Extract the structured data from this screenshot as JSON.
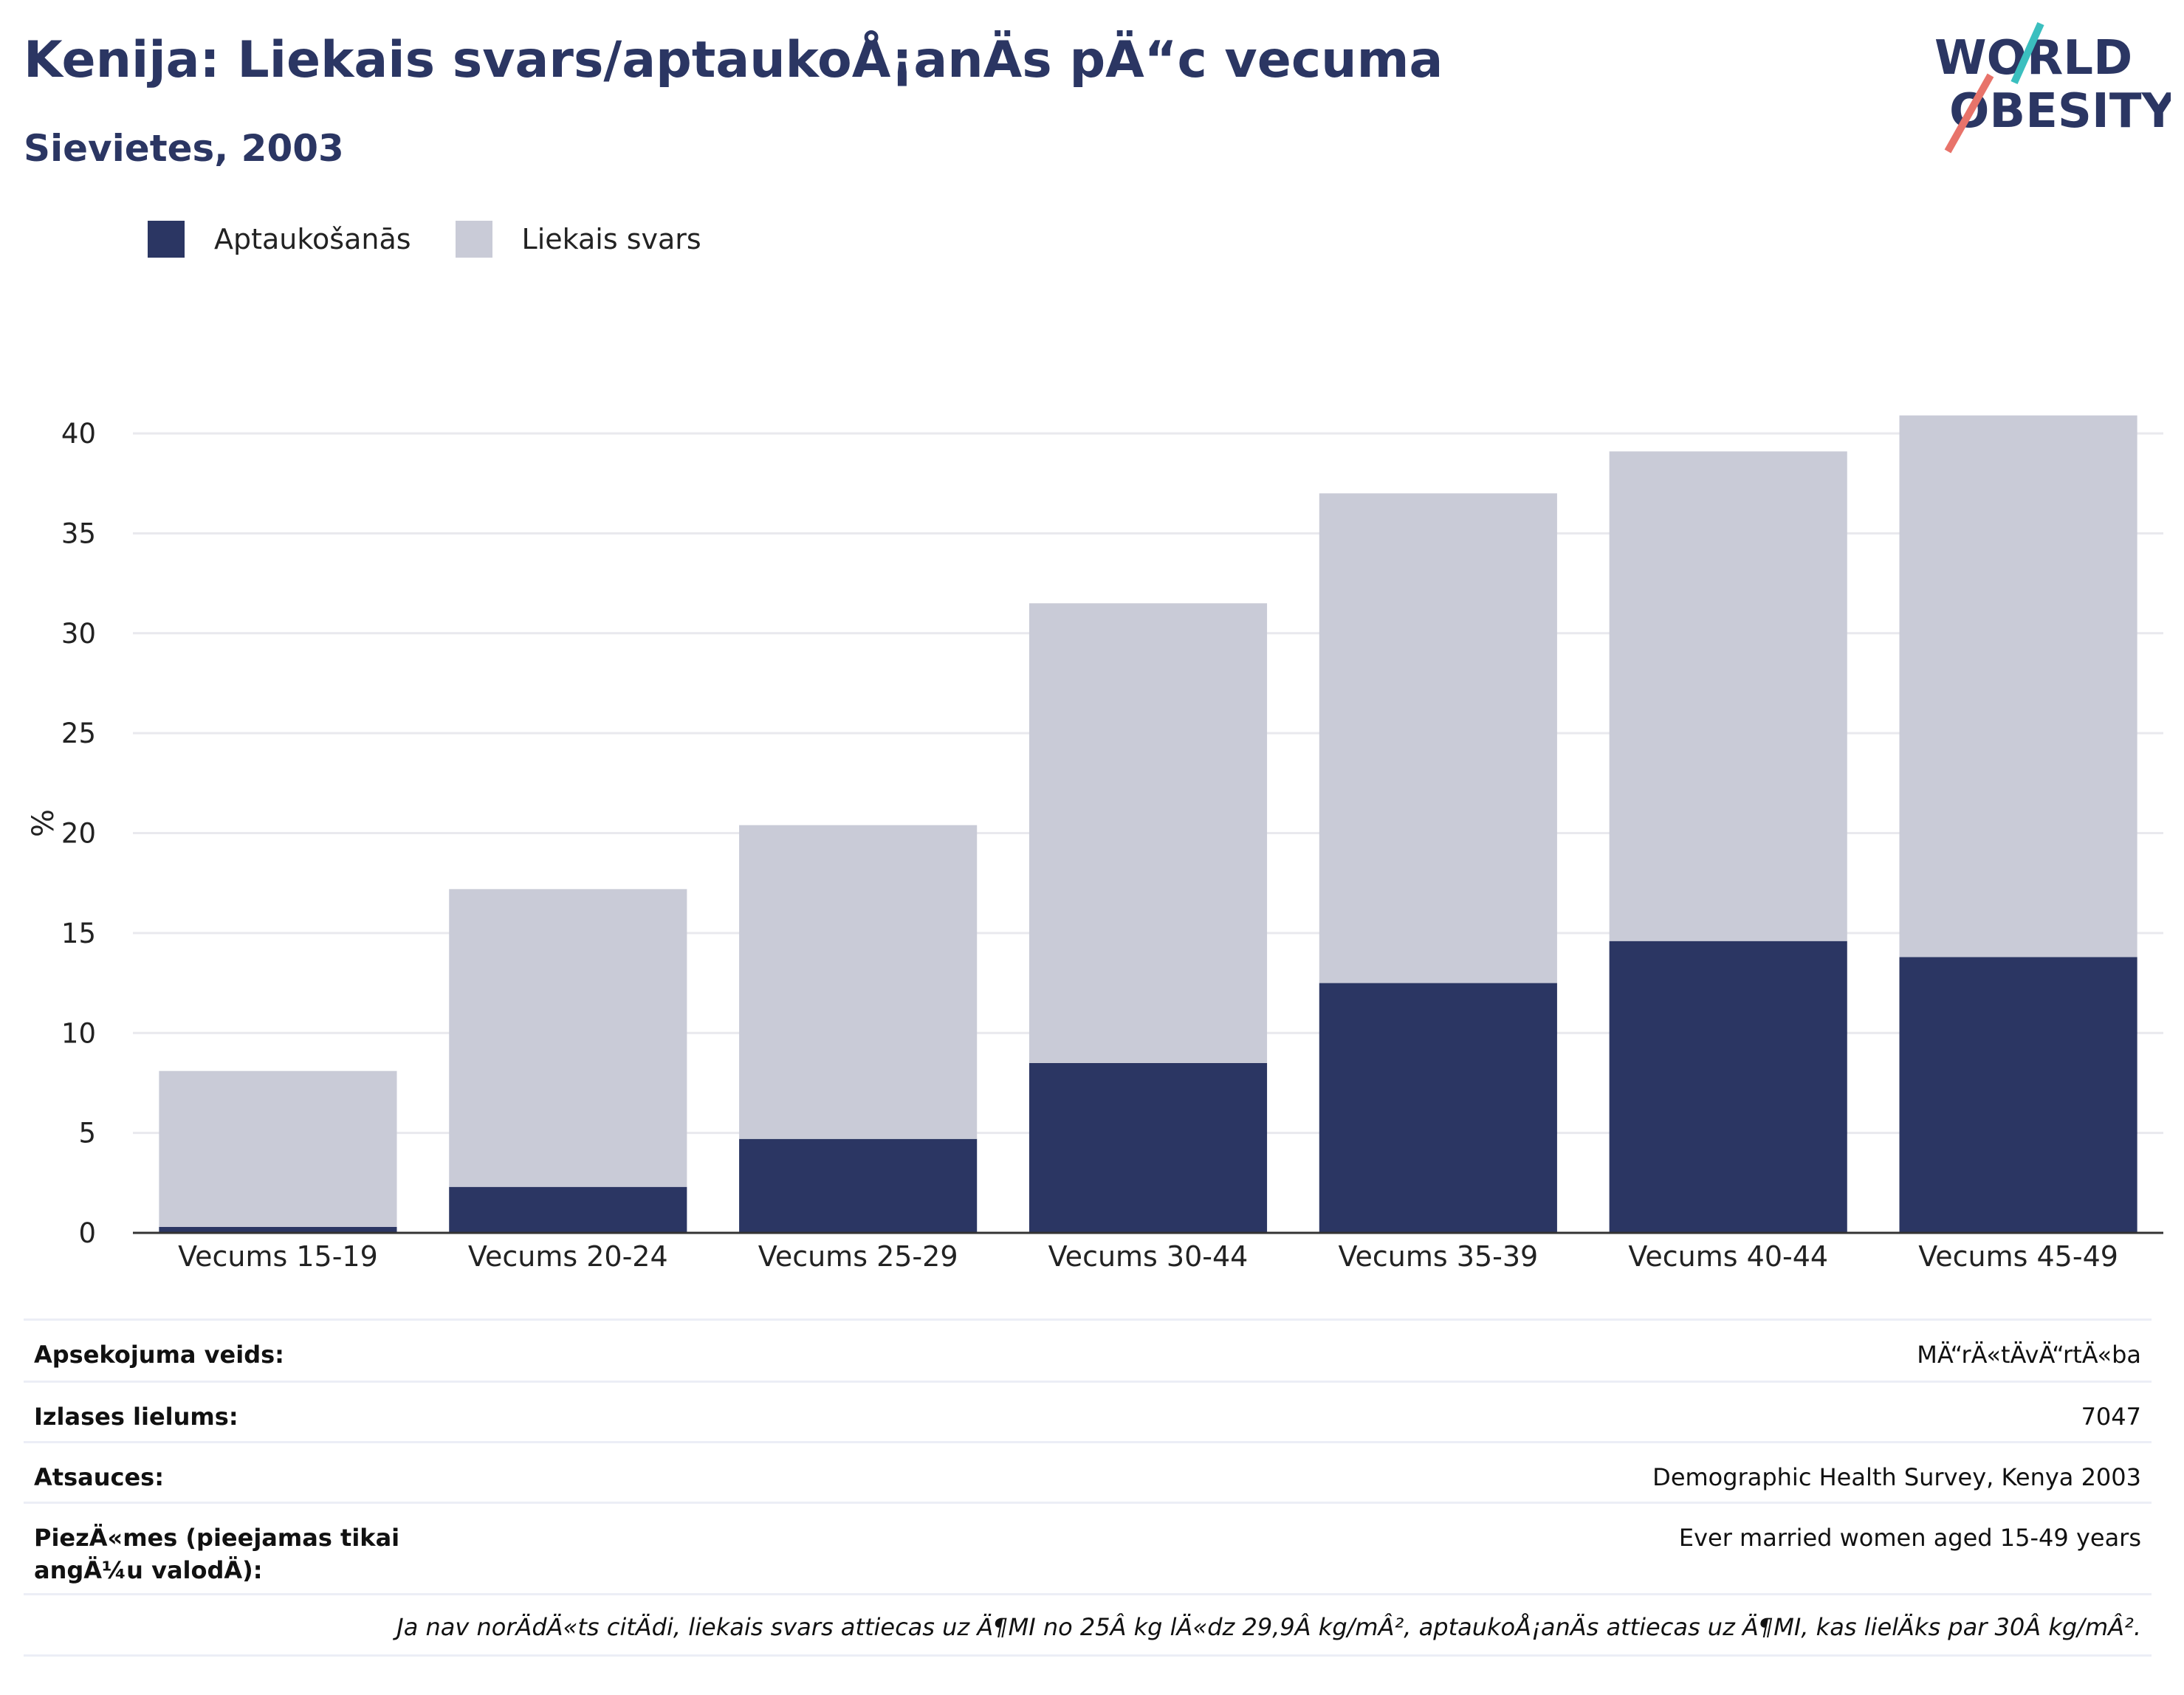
{
  "header": {
    "title": "Kenija: Liekais svars/aptaukoÅ¡anÄs pÄ“c vecuma",
    "subtitle": "Sievietes, 2003"
  },
  "logo": {
    "line1": "WORLD",
    "line2": "OBESITY"
  },
  "legend": [
    {
      "label": "Aptaukošanās",
      "color": "#2b3663"
    },
    {
      "label": "Liekais svars",
      "color": "#c9cbd7"
    }
  ],
  "chart_data": {
    "type": "bar",
    "stacked": true,
    "categories": [
      "Vecums 15-19",
      "Vecums 20-24",
      "Vecums 25-29",
      "Vecums 30-44",
      "Vecums 35-39",
      "Vecums 40-44",
      "Vecums 45-49"
    ],
    "series": [
      {
        "name": "Aptaukošanās",
        "color": "#2b3663",
        "values": [
          0.3,
          2.3,
          4.7,
          8.5,
          12.5,
          14.6,
          13.8
        ]
      },
      {
        "name": "Liekais svars",
        "color": "#c9cbd7",
        "values": [
          7.8,
          14.9,
          15.7,
          23.0,
          24.5,
          24.5,
          27.1
        ]
      }
    ],
    "ylabel": "%",
    "ylim": [
      0,
      41
    ],
    "yticks": [
      0,
      5,
      10,
      15,
      20,
      25,
      30,
      35,
      40
    ],
    "grid": true,
    "legend_position": "top-left"
  },
  "info": {
    "rows": [
      {
        "key": "Apsekojuma veids:",
        "value": "MÄ“rÄ«tÄvÄ“rtÄ«ba"
      },
      {
        "key": "Izlases lielums:",
        "value": "7047"
      },
      {
        "key": "Atsauces:",
        "value": "Demographic Health Survey, Kenya 2003"
      },
      {
        "key": "PiezÄ«mes (pieejamas tikai angÄ¼u valodÄ):",
        "value": "Ever married women aged 15-49 years"
      }
    ],
    "footnote": "Ja nav norÄdÄ«ts citÄdi, liekais svars attiecas uz Ä¶MI no 25Â kg lÄ«dz 29,9Â kg/mÂ², aptaukoÅ¡anÄs attiecas uz Ä¶MI, kas lielÄks par 30Â kg/mÂ²."
  }
}
